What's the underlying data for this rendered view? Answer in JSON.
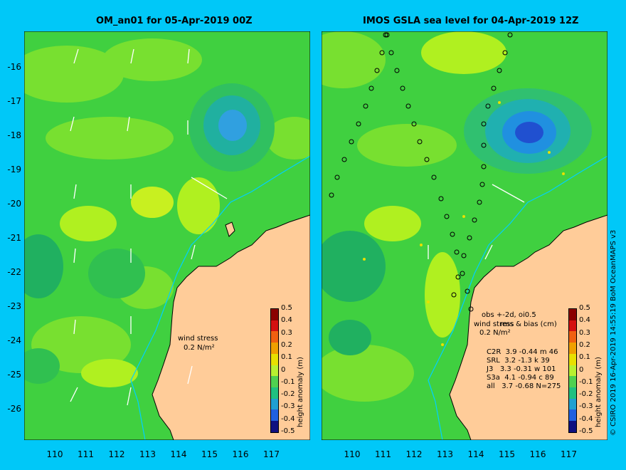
{
  "left_panel": {
    "title": "OM_an01 for 05-Apr-2019 00Z",
    "wind_label": "wind stress",
    "wind_scale": "0.2 N/m²"
  },
  "right_panel": {
    "title": "IMOS GSLA sea level  for 04-Apr-2019 12Z",
    "wind_label": "wind stress",
    "wind_scale": "0.2 N/m²",
    "obs_header": "obs +-2d, oi0.5",
    "bias_header": "rms & bias (cm)",
    "stats": [
      {
        "sat": "C2R",
        "rms": "3.9",
        "bias": "-0.44",
        "flag": "m",
        "n": "46"
      },
      {
        "sat": "SRL",
        "rms": "3.2",
        "bias": "-1.3",
        "flag": "k",
        "n": "39"
      },
      {
        "sat": "J3",
        "rms": "3.3",
        "bias": "-0.31",
        "flag": "w",
        "n": "101"
      },
      {
        "sat": "S3a",
        "rms": "4.1",
        "bias": "-0.94",
        "flag": "c",
        "n": "89"
      },
      {
        "sat": "all",
        "rms": "3.7",
        "bias": "-0.68",
        "flag": "N=",
        "n": "275"
      }
    ]
  },
  "axes": {
    "lat_ticks": [
      "-16",
      "-17",
      "-18",
      "-19",
      "-20",
      "-21",
      "-22",
      "-23",
      "-24",
      "-25",
      "-26"
    ],
    "lon_ticks": [
      "110",
      "111",
      "112",
      "113",
      "114",
      "115",
      "116",
      "117"
    ]
  },
  "colorbar": {
    "title": "height anomaly (m)",
    "ticks": [
      "0.5",
      "0.4",
      "0.3",
      "0.2",
      "0.1",
      "0",
      "-0.1",
      "-0.2",
      "-0.3",
      "-0.4",
      "-0.5"
    ],
    "colors": [
      "#8b0000",
      "#d41010",
      "#f06010",
      "#f0a000",
      "#e8e000",
      "#b8f030",
      "#50d050",
      "#20c080",
      "#20a0d0",
      "#2060e0",
      "#101080"
    ]
  },
  "credit": "© CSIRO 2019   16-Apr-2019 14:55:19 BoM OceanMAPS v3"
}
